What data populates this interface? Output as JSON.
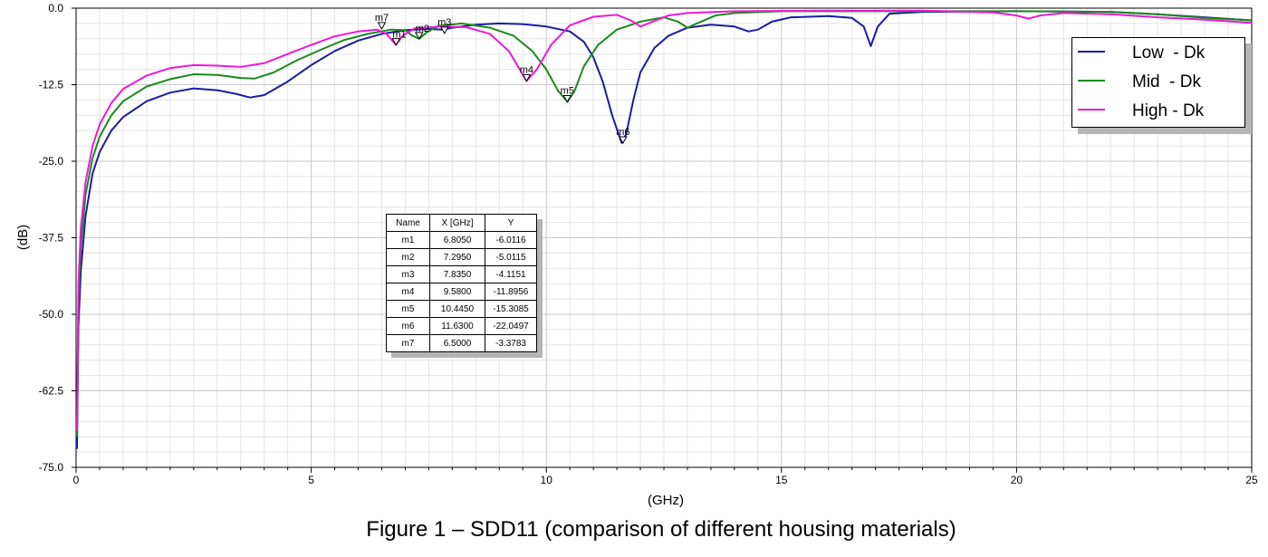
{
  "chart_data": {
    "type": "line",
    "title": "Figure 1 – SDD11 (comparison of different housing materials)",
    "xlabel": "(GHz)",
    "ylabel": "(dB)",
    "xlim": [
      0,
      25
    ],
    "ylim": [
      -75,
      0
    ],
    "x_ticks": [
      0,
      5,
      10,
      15,
      20,
      25
    ],
    "x_tick_labels": [
      "0",
      "5",
      "10",
      "15",
      "20",
      "25"
    ],
    "y_ticks": [
      0,
      -12.5,
      -25,
      -37.5,
      -50,
      -62.5,
      -75
    ],
    "y_tick_labels": [
      "0.0",
      "-12.5",
      "-25.0",
      "-37.5",
      "-50.0",
      "-62.5",
      "-75.0"
    ],
    "grid": true,
    "legend_position": "top-right",
    "series": [
      {
        "name": "Low  - Dk",
        "color": "#1a1aa6",
        "points": [
          [
            0.02,
            -72
          ],
          [
            0.05,
            -52
          ],
          [
            0.1,
            -43
          ],
          [
            0.2,
            -34
          ],
          [
            0.35,
            -27
          ],
          [
            0.5,
            -23.5
          ],
          [
            0.75,
            -20
          ],
          [
            1,
            -17.8
          ],
          [
            1.5,
            -15.2
          ],
          [
            2,
            -13.8
          ],
          [
            2.5,
            -13.1
          ],
          [
            3,
            -13.4
          ],
          [
            3.4,
            -14
          ],
          [
            3.7,
            -14.6
          ],
          [
            4,
            -14.2
          ],
          [
            4.5,
            -12
          ],
          [
            5,
            -9.3
          ],
          [
            5.5,
            -7
          ],
          [
            6,
            -5.3
          ],
          [
            6.5,
            -4.2
          ],
          [
            7,
            -3.6
          ],
          [
            7.5,
            -3.4
          ],
          [
            7.8,
            -3.5
          ],
          [
            8,
            -3.2
          ],
          [
            8.5,
            -2.7
          ],
          [
            9,
            -2.5
          ],
          [
            9.5,
            -2.6
          ],
          [
            10,
            -3
          ],
          [
            10.5,
            -3.8
          ],
          [
            10.8,
            -5.5
          ],
          [
            11,
            -8
          ],
          [
            11.2,
            -12
          ],
          [
            11.4,
            -17.5
          ],
          [
            11.6,
            -22
          ],
          [
            11.7,
            -20.5
          ],
          [
            11.85,
            -15
          ],
          [
            12,
            -10.5
          ],
          [
            12.3,
            -6.5
          ],
          [
            12.6,
            -4.5
          ],
          [
            13,
            -3.2
          ],
          [
            13.5,
            -2.7
          ],
          [
            14,
            -3
          ],
          [
            14.3,
            -3.8
          ],
          [
            14.5,
            -3.5
          ],
          [
            14.8,
            -2.2
          ],
          [
            15.2,
            -1.5
          ],
          [
            16,
            -1.3
          ],
          [
            16.5,
            -1.6
          ],
          [
            16.75,
            -3
          ],
          [
            16.9,
            -6.2
          ],
          [
            17.05,
            -3
          ],
          [
            17.3,
            -0.9
          ],
          [
            18,
            -0.6
          ],
          [
            20,
            -0.5
          ],
          [
            22,
            -0.6
          ],
          [
            23,
            -1
          ],
          [
            24,
            -1.5
          ],
          [
            25,
            -2
          ]
        ]
      },
      {
        "name": "Mid  - Dk",
        "color": "#1a8a1a",
        "points": [
          [
            0.02,
            -70
          ],
          [
            0.05,
            -48
          ],
          [
            0.1,
            -39
          ],
          [
            0.2,
            -30.5
          ],
          [
            0.35,
            -24.5
          ],
          [
            0.5,
            -21
          ],
          [
            0.75,
            -17.5
          ],
          [
            1,
            -15.2
          ],
          [
            1.5,
            -12.8
          ],
          [
            2,
            -11.6
          ],
          [
            2.5,
            -10.8
          ],
          [
            3,
            -10.9
          ],
          [
            3.5,
            -11.4
          ],
          [
            3.8,
            -11.5
          ],
          [
            4.2,
            -10.5
          ],
          [
            4.7,
            -8.5
          ],
          [
            5.2,
            -6.8
          ],
          [
            5.7,
            -5.2
          ],
          [
            6.2,
            -4.2
          ],
          [
            6.7,
            -3.5
          ],
          [
            7,
            -3.6
          ],
          [
            7.15,
            -4.5
          ],
          [
            7.3,
            -5
          ],
          [
            7.45,
            -4
          ],
          [
            7.7,
            -2.9
          ],
          [
            8.2,
            -2.5
          ],
          [
            8.8,
            -3.2
          ],
          [
            9.3,
            -4.5
          ],
          [
            9.7,
            -7
          ],
          [
            10,
            -10
          ],
          [
            10.25,
            -13.5
          ],
          [
            10.45,
            -15.3
          ],
          [
            10.6,
            -13.5
          ],
          [
            10.8,
            -9.5
          ],
          [
            11.1,
            -6
          ],
          [
            11.5,
            -3.5
          ],
          [
            12,
            -2.2
          ],
          [
            12.5,
            -1.5
          ],
          [
            12.8,
            -2.2
          ],
          [
            13,
            -3.2
          ],
          [
            13.2,
            -2.5
          ],
          [
            13.6,
            -1.2
          ],
          [
            14,
            -0.8
          ],
          [
            15,
            -0.5
          ],
          [
            17,
            -0.5
          ],
          [
            20,
            -0.5
          ],
          [
            22,
            -0.6
          ],
          [
            23,
            -1
          ],
          [
            24,
            -1.6
          ],
          [
            25,
            -2
          ]
        ]
      },
      {
        "name": "High - Dk",
        "color": "#ee18d8",
        "points": [
          [
            0.02,
            -69
          ],
          [
            0.05,
            -45
          ],
          [
            0.1,
            -36
          ],
          [
            0.2,
            -28.5
          ],
          [
            0.35,
            -22.5
          ],
          [
            0.5,
            -19
          ],
          [
            0.75,
            -15.5
          ],
          [
            1,
            -13.2
          ],
          [
            1.5,
            -11
          ],
          [
            2,
            -9.8
          ],
          [
            2.5,
            -9.3
          ],
          [
            3,
            -9.4
          ],
          [
            3.5,
            -9.6
          ],
          [
            4,
            -9
          ],
          [
            4.5,
            -7.5
          ],
          [
            5,
            -6
          ],
          [
            5.5,
            -4.6
          ],
          [
            6,
            -3.8
          ],
          [
            6.4,
            -3.5
          ],
          [
            6.6,
            -4.2
          ],
          [
            6.8,
            -6
          ],
          [
            6.95,
            -4.5
          ],
          [
            7.2,
            -3.3
          ],
          [
            7.8,
            -3
          ],
          [
            8.3,
            -3.1
          ],
          [
            8.8,
            -4.2
          ],
          [
            9.2,
            -7
          ],
          [
            9.58,
            -11.9
          ],
          [
            9.8,
            -10
          ],
          [
            10.1,
            -6
          ],
          [
            10.5,
            -2.8
          ],
          [
            11,
            -1.4
          ],
          [
            11.5,
            -1.1
          ],
          [
            11.8,
            -2
          ],
          [
            12,
            -3
          ],
          [
            12.2,
            -2.4
          ],
          [
            12.6,
            -1.2
          ],
          [
            13,
            -0.8
          ],
          [
            14,
            -0.5
          ],
          [
            16,
            -0.4
          ],
          [
            18,
            -0.4
          ],
          [
            19.5,
            -0.7
          ],
          [
            20,
            -1.2
          ],
          [
            20.25,
            -1.7
          ],
          [
            20.5,
            -1.2
          ],
          [
            21,
            -0.8
          ],
          [
            22,
            -1
          ],
          [
            23,
            -1.5
          ],
          [
            24,
            -1.9
          ],
          [
            25,
            -2.4
          ]
        ]
      }
    ],
    "markers": [
      {
        "name": "m1",
        "x": 6.805,
        "y": -6.0116,
        "label_side": "right"
      },
      {
        "name": "m2",
        "x": 7.295,
        "y": -5.0115,
        "label_side": "right"
      },
      {
        "name": "m3",
        "x": 7.835,
        "y": -4.1151,
        "label_side": "up"
      },
      {
        "name": "m4",
        "x": 9.58,
        "y": -11.8956,
        "label_side": "up"
      },
      {
        "name": "m5",
        "x": 10.445,
        "y": -15.3085,
        "label_side": "up"
      },
      {
        "name": "m6",
        "x": 11.63,
        "y": -22.0497,
        "label_side": "up"
      },
      {
        "name": "m7",
        "x": 6.5,
        "y": -3.3783,
        "label_side": "up"
      }
    ],
    "marker_table": {
      "headers": [
        "Name",
        "X [GHz]",
        "Y"
      ],
      "rows": [
        [
          "m1",
          "6.8050",
          "-6.0116"
        ],
        [
          "m2",
          "7.2950",
          "-5.0115"
        ],
        [
          "m3",
          "7.8350",
          "-4.1151"
        ],
        [
          "m4",
          "9.5800",
          "-11.8956"
        ],
        [
          "m5",
          "10.4450",
          "-15.3085"
        ],
        [
          "m6",
          "11.6300",
          "-22.0497"
        ],
        [
          "m7",
          "6.5000",
          "-3.3783"
        ]
      ]
    }
  }
}
